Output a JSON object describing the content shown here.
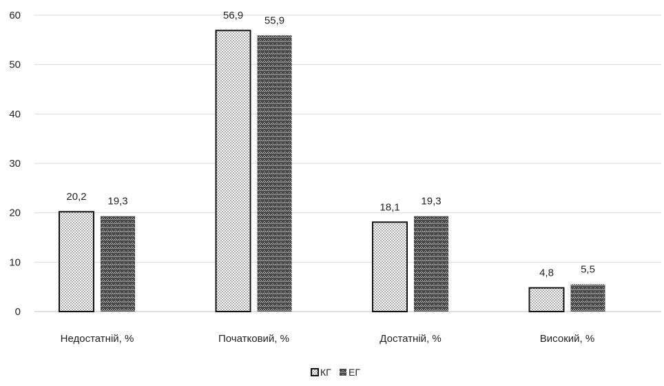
{
  "chart_data": {
    "type": "bar",
    "categories": [
      "Недостатній, %",
      "Початковий, %",
      "Достатній, %",
      "Високий, %"
    ],
    "series": [
      {
        "name": "КГ",
        "values": [
          20.2,
          56.9,
          18.1,
          4.8
        ],
        "labels": [
          "20,2",
          "56,9",
          "18,1",
          "4,8"
        ],
        "pattern": "dots"
      },
      {
        "name": "ЕГ",
        "values": [
          19.3,
          55.9,
          19.3,
          5.5
        ],
        "labels": [
          "19,3",
          "55,9",
          "19,3",
          "5,5"
        ],
        "pattern": "zigzag"
      }
    ],
    "y_ticks": [
      0,
      10,
      20,
      30,
      40,
      50,
      60
    ],
    "ylim": [
      0,
      60
    ],
    "grid": true,
    "legend_position": "bottom",
    "colors": {
      "bar_stroke": "#111111",
      "pattern_dark": "#333333",
      "grid": "#d9d9d9",
      "axis": "#bfbfbf",
      "text": "#222222"
    }
  }
}
